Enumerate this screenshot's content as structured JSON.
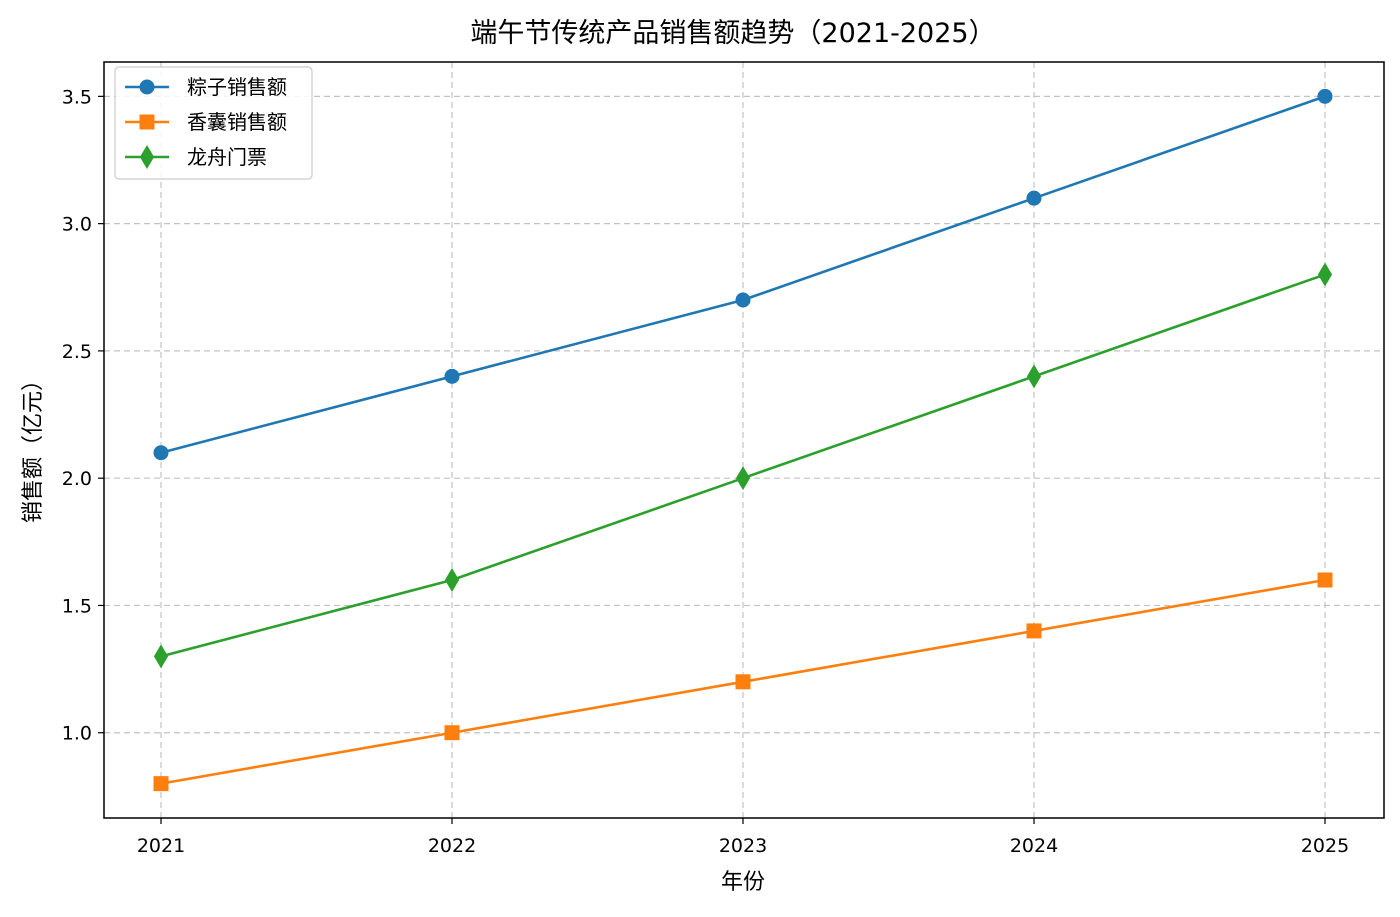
{
  "chart_data": {
    "type": "line",
    "title": "端午节传统产品销售额趋势（2021-2025）",
    "xlabel": "年份",
    "ylabel": "销售额（亿元）",
    "categories": [
      "2021",
      "2022",
      "2023",
      "2024",
      "2025"
    ],
    "ylim": [
      0.665,
      3.635
    ],
    "yticks": [
      1.0,
      1.5,
      2.0,
      2.5,
      3.0,
      3.5
    ],
    "ytick_labels": [
      "1.0",
      "1.5",
      "2.0",
      "2.5",
      "3.0",
      "3.5"
    ],
    "grid": true,
    "legend_position": "top-left",
    "series": [
      {
        "name": "粽子销售额",
        "values": [
          2.1,
          2.4,
          2.7,
          3.1,
          3.5
        ],
        "color": "#1f77b4",
        "marker": "circle"
      },
      {
        "name": "香囊销售额",
        "values": [
          0.8,
          1.0,
          1.2,
          1.4,
          1.6
        ],
        "color": "#ff7f0e",
        "marker": "square"
      },
      {
        "name": "龙舟门票",
        "values": [
          1.3,
          1.6,
          2.0,
          2.4,
          2.8
        ],
        "color": "#2ca02c",
        "marker": "diamond"
      }
    ]
  }
}
